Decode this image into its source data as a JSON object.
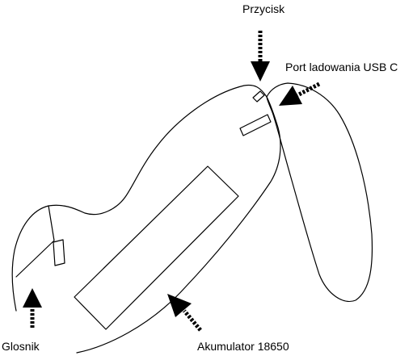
{
  "labels": {
    "button": "Przycisk",
    "usb_port": "Port ladowania USB C",
    "speaker": "Glosnik",
    "battery": "Akumulator 18650"
  },
  "colors": {
    "line": "#000000",
    "background": "#ffffff"
  }
}
